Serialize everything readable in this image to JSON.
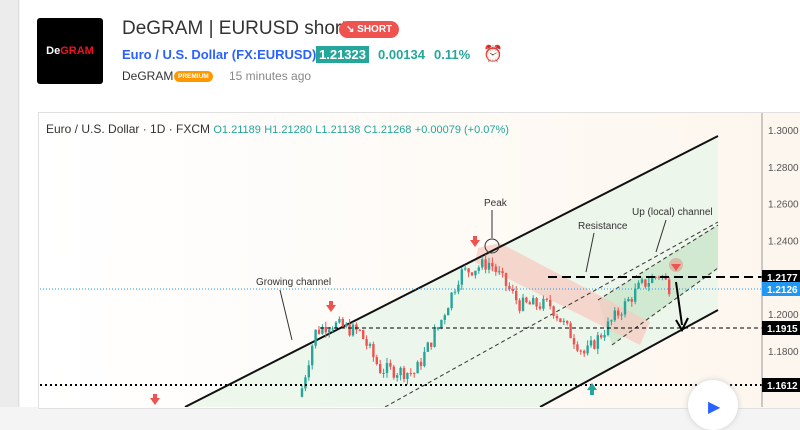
{
  "header": {
    "logo_text": "DeGRAM",
    "title": "DeGRAM | EURUSD short",
    "badge": "↘ SHORT",
    "symbol": "Euro / U.S. Dollar (FX:EURUSD)",
    "price": "1.21323",
    "change": "0.00134",
    "change_pct": "0.11%",
    "author": "DeGRAM",
    "author_badge": "PREMIUM",
    "time": "15 minutes ago",
    "alarm_icon": "alarm-clock-plus-icon"
  },
  "chart": {
    "legend": {
      "name": "Euro / U.S. Dollar · 1D · FXCM",
      "o": "O1.21189",
      "h": "H1.21280",
      "l": "L1.21138",
      "c": "C1.21268",
      "chg": "+0.00079 (+0.07%)"
    },
    "axis": [
      "1.3000",
      "1.2800",
      "1.2600",
      "1.2400",
      "1.2000",
      "1.1800"
    ],
    "levels": [
      {
        "label": "1.2177",
        "color": "#000000"
      },
      {
        "label": "1.2126",
        "color": "#2196f3"
      },
      {
        "label": "1.1915",
        "color": "#000000"
      },
      {
        "label": "1.1612",
        "color": "#000000"
      }
    ],
    "annotations": {
      "peak": "Peak",
      "resistance": "Resistance",
      "up_channel": "Up (local) channel",
      "growing": "Growing channel"
    },
    "colors": {
      "up": "#26a69a",
      "down": "#ef5350",
      "channel": "#c8e6c9",
      "down_channel": "#f8c9c0"
    }
  }
}
